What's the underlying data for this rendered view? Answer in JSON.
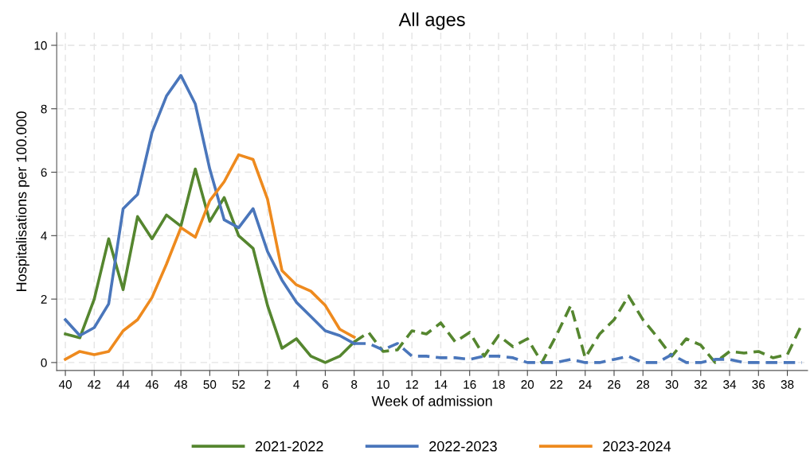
{
  "chart_data": {
    "type": "line",
    "title": "All ages",
    "xlabel": "Week of admission",
    "ylabel": "Hospitalisations per 100.000",
    "categories": [
      "40",
      null,
      "42",
      null,
      "44",
      null,
      "46",
      null,
      "48",
      null,
      "50",
      null,
      "52",
      null,
      "2",
      null,
      "4",
      null,
      "6",
      null,
      "8",
      null,
      "10",
      null,
      "12",
      null,
      "14",
      null,
      "16",
      null,
      "18",
      null,
      "20",
      null,
      "22",
      null,
      "24",
      null,
      "26",
      null,
      "28",
      null,
      "30",
      null,
      "32",
      null,
      "34",
      null,
      "36",
      null,
      "38",
      null
    ],
    "series": [
      {
        "name": "2021-2022",
        "color": "#55862f",
        "line_style": "solid",
        "values": [
          0.9,
          0.78,
          2.0,
          3.9,
          2.3,
          4.6,
          3.9,
          4.65,
          4.3,
          6.1,
          4.45,
          5.2,
          4.0,
          3.6,
          1.8,
          0.45,
          0.75,
          0.2,
          0.0,
          0.2,
          0.65,
          null,
          null,
          null,
          null,
          null,
          null,
          null,
          null,
          null,
          null,
          null,
          null,
          null,
          null,
          null,
          null,
          null,
          null,
          null,
          null,
          null,
          null,
          null,
          null,
          null,
          null,
          null,
          null,
          null,
          null,
          null
        ]
      },
      {
        "color": "#55862f",
        "line_style": "dashed",
        "values": [
          null,
          null,
          null,
          null,
          null,
          null,
          null,
          null,
          null,
          null,
          null,
          null,
          null,
          null,
          null,
          null,
          null,
          null,
          null,
          null,
          0.65,
          0.95,
          0.35,
          0.4,
          1.0,
          0.9,
          1.25,
          0.65,
          0.95,
          0.2,
          0.85,
          0.5,
          0.75,
          0.0,
          0.85,
          1.8,
          0.15,
          0.9,
          1.35,
          2.1,
          1.35,
          0.8,
          0.2,
          0.75,
          0.55,
          0.0,
          0.35,
          0.3,
          0.35,
          0.15,
          0.25,
          1.2
        ]
      },
      {
        "name": "2022-2023",
        "color": "#4a76bb",
        "line_style": "solid",
        "values": [
          1.35,
          0.85,
          1.1,
          1.85,
          4.85,
          5.3,
          7.25,
          8.4,
          9.05,
          8.15,
          6.1,
          4.5,
          4.25,
          4.85,
          3.5,
          2.6,
          1.9,
          1.45,
          1.0,
          0.85,
          0.6,
          null,
          null,
          null,
          null,
          null,
          null,
          null,
          null,
          null,
          null,
          null,
          null,
          null,
          null,
          null,
          null,
          null,
          null,
          null,
          null,
          null,
          null,
          null,
          null,
          null,
          null,
          null,
          null,
          null,
          null,
          null
        ]
      },
      {
        "color": "#4a76bb",
        "line_style": "dashed",
        "values": [
          null,
          null,
          null,
          null,
          null,
          null,
          null,
          null,
          null,
          null,
          null,
          null,
          null,
          null,
          null,
          null,
          null,
          null,
          null,
          null,
          0.6,
          0.6,
          0.4,
          0.6,
          0.2,
          0.2,
          0.15,
          0.15,
          0.1,
          0.2,
          0.2,
          0.15,
          0.0,
          0.0,
          0.0,
          0.1,
          0.0,
          0.0,
          0.1,
          0.2,
          0.0,
          0.0,
          0.25,
          0.0,
          0.0,
          0.1,
          0.1,
          0.0,
          0.0,
          0.0,
          0.0,
          0.0
        ]
      },
      {
        "name": "2023-2024",
        "color": "#ee8a1e",
        "line_style": "solid",
        "values": [
          0.1,
          0.35,
          0.25,
          0.35,
          1.0,
          1.35,
          2.05,
          3.1,
          4.25,
          3.95,
          5.1,
          5.7,
          6.55,
          6.4,
          5.15,
          2.9,
          2.45,
          2.25,
          1.8,
          1.05,
          0.8,
          null,
          null,
          null,
          null,
          null,
          null,
          null,
          null,
          null,
          null,
          null,
          null,
          null,
          null,
          null,
          null,
          null,
          null,
          null,
          null,
          null,
          null,
          null,
          null,
          null,
          null,
          null,
          null,
          null,
          null,
          null
        ]
      }
    ],
    "ylim": [
      -0.25,
      10.4
    ],
    "yticks": [
      0,
      2,
      4,
      6,
      8,
      10
    ],
    "grid": true,
    "legend": "bottom"
  }
}
